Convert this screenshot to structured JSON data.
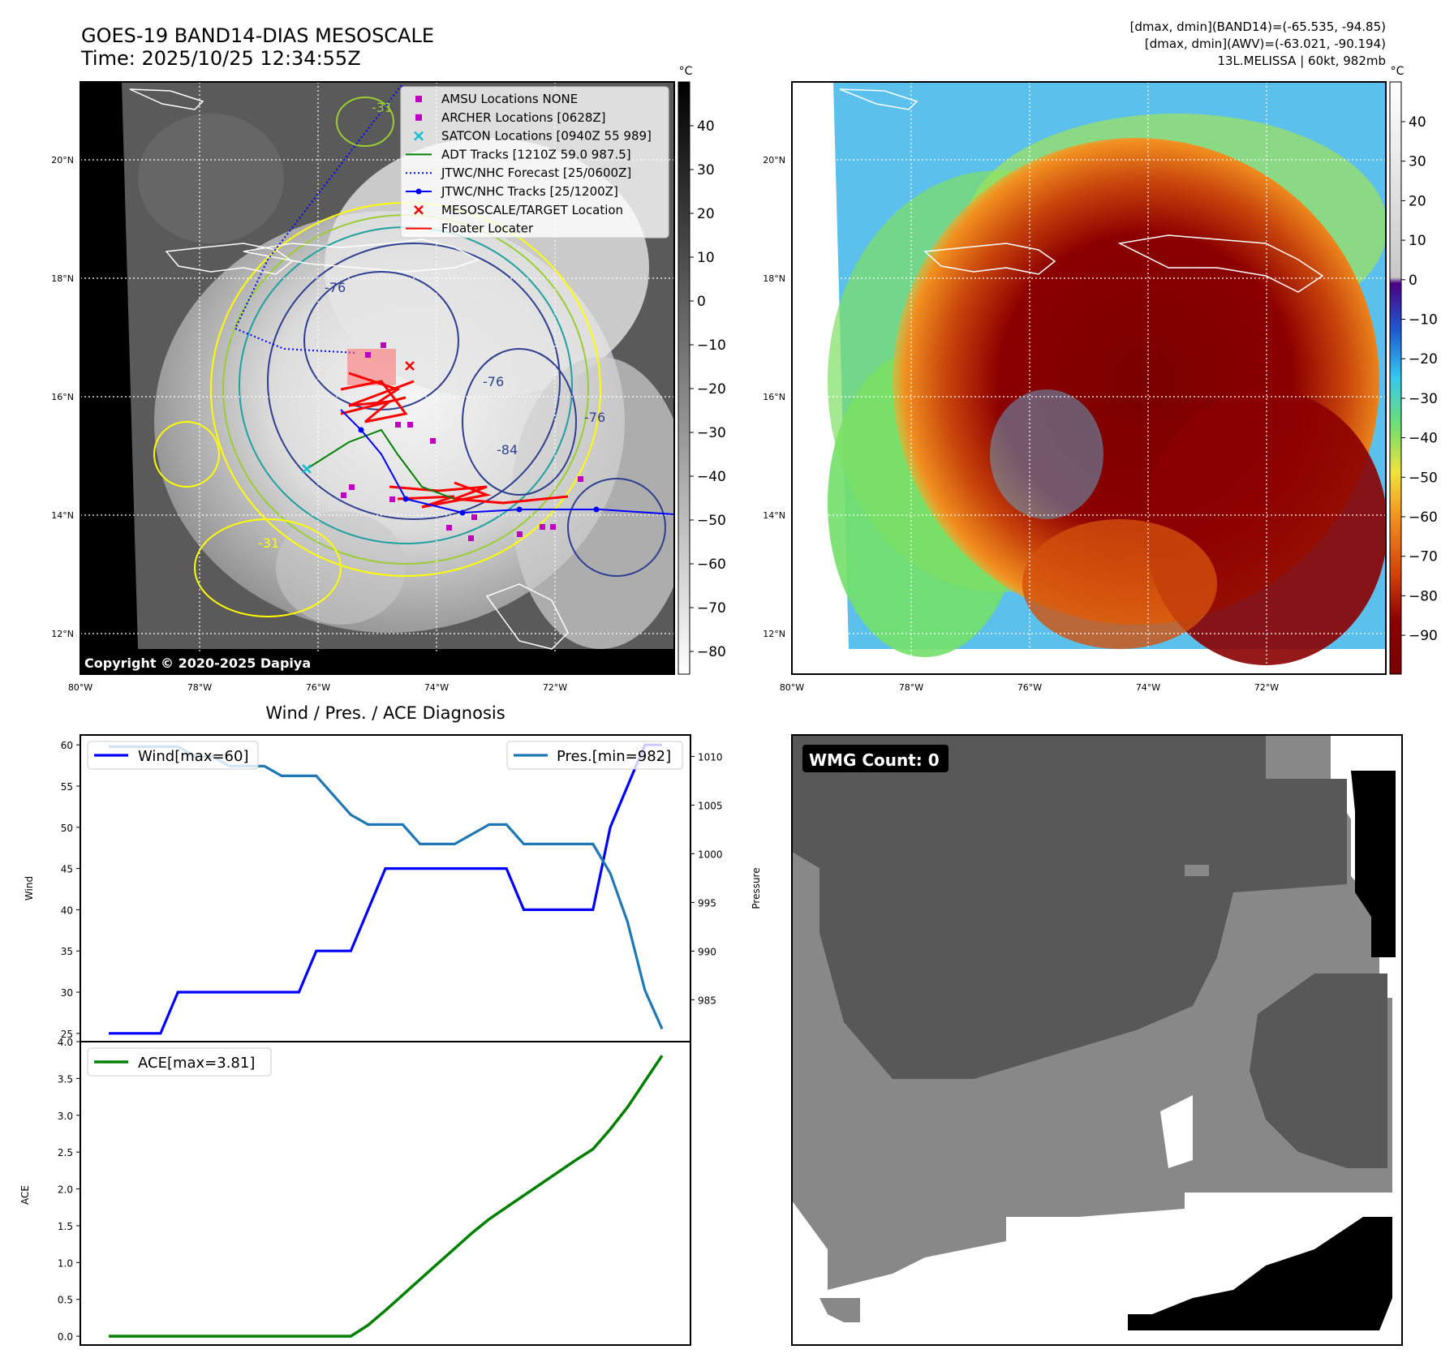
{
  "header": {
    "title_line1": "GOES-19 BAND14-DIAS MESOSCALE",
    "title_line2": "Time: 2025/10/25 12:34:55Z",
    "info_line1": "[dmax, dmin](BAND14)=(-65.535, -94.85)",
    "info_line2": "[dmax, dmin](AWV)=(-63.021, -90.194)",
    "info_line3": "13L.MELISSA | 60kt, 982mb"
  },
  "map_axes": {
    "lat_labels": [
      "20°N",
      "18°N",
      "16°N",
      "14°N",
      "12°N"
    ],
    "lon_labels": [
      "80°W",
      "78°W",
      "76°W",
      "74°W",
      "72°W"
    ]
  },
  "ir_panel": {
    "copyright": "Copyright © 2020-2025 Dapiya",
    "colorbar_unit": "°C",
    "colorbar_ticks": [
      "40",
      "30",
      "20",
      "10",
      "0",
      "−10",
      "−20",
      "−30",
      "−40",
      "−50",
      "−60",
      "−70",
      "−80"
    ],
    "contour_labels": [
      "-76",
      "-76",
      "-76",
      "-84",
      "-31",
      "-31"
    ],
    "legend": [
      {
        "label": "AMSU Locations NONE",
        "marker": "square",
        "color": "#bf00bf"
      },
      {
        "label": "ARCHER Locations [0628Z]",
        "marker": "square",
        "color": "#bf00bf"
      },
      {
        "label": "SATCON Locations [0940Z 55 989]",
        "marker": "x",
        "color": "#17becf"
      },
      {
        "label": "ADT Tracks [1210Z 59.0 987.5]",
        "marker": "line",
        "color": "#008000"
      },
      {
        "label": "JTWC/NHC Forecast [25/0600Z]",
        "marker": "dotted",
        "color": "#0000ff"
      },
      {
        "label": "JTWC/NHC Tracks [25/1200Z]",
        "marker": "line-dot",
        "color": "#0000ff"
      },
      {
        "label": "MESOSCALE/TARGET Location",
        "marker": "x",
        "color": "#ff0000"
      },
      {
        "label": "Floater Locater",
        "marker": "line",
        "color": "#ff0000"
      }
    ]
  },
  "awv_panel": {
    "colorbar_unit": "°C",
    "colorbar_ticks": [
      "40",
      "30",
      "20",
      "10",
      "0",
      "−10",
      "−20",
      "−30",
      "−40",
      "−50",
      "−60",
      "−70",
      "−80",
      "−90"
    ]
  },
  "wmg_panel": {
    "label": "WMG Count: 0"
  },
  "chart_data": [
    {
      "type": "line",
      "title": "Wind / Pres. / ACE Diagnosis",
      "x": [
        0,
        1,
        2,
        3,
        4,
        5,
        6,
        7,
        8,
        9,
        10,
        11,
        12,
        13,
        14,
        15,
        16,
        17,
        18,
        19,
        20,
        21,
        22,
        23,
        24,
        25,
        26,
        27,
        28,
        29,
        30,
        31,
        32
      ],
      "ylabel": "Wind",
      "ylabel_right": "Pressure",
      "ylim": [
        24,
        61.2
      ],
      "ylim_right": [
        980.7,
        1012.2
      ],
      "yticks": [
        25,
        30,
        35,
        40,
        45,
        50,
        55,
        60
      ],
      "yticks_right": [
        985,
        990,
        995,
        1000,
        1005,
        1010
      ],
      "series": [
        {
          "name": "Wind[max=60]",
          "axis": "left",
          "color": "#0000ff",
          "values": [
            25,
            25,
            25,
            25,
            30,
            30,
            30,
            30,
            30,
            30,
            30,
            30,
            35,
            35,
            35,
            40,
            45,
            45,
            45,
            45,
            45,
            45,
            45,
            45,
            40,
            40,
            40,
            40,
            40,
            50,
            55,
            60,
            60
          ]
        },
        {
          "name": "Pres.[min=982]",
          "axis": "right",
          "color": "#1f77b4",
          "values": [
            1011,
            1011,
            1011,
            1011,
            1011,
            1010,
            1010,
            1009,
            1009,
            1009,
            1008,
            1008,
            1008,
            1006,
            1004,
            1003,
            1003,
            1003,
            1001,
            1001,
            1001,
            1002,
            1003,
            1003,
            1001,
            1001,
            1001,
            1001,
            1001,
            998,
            993,
            986,
            982
          ]
        }
      ]
    },
    {
      "type": "line",
      "x": [
        0,
        1,
        2,
        3,
        4,
        5,
        6,
        7,
        8,
        9,
        10,
        11,
        12,
        13,
        14,
        15,
        16,
        17,
        18,
        19,
        20,
        21,
        22,
        23,
        24,
        25,
        26,
        27,
        28,
        29,
        30,
        31,
        32
      ],
      "ylabel": "ACE",
      "ylim": [
        -0.12,
        4.0
      ],
      "yticks": [
        0.0,
        0.5,
        1.0,
        1.5,
        2.0,
        2.5,
        3.0,
        3.5,
        4.0
      ],
      "series": [
        {
          "name": "ACE[max=3.81]",
          "color": "#008000",
          "values": [
            0,
            0,
            0,
            0,
            0,
            0,
            0,
            0,
            0,
            0,
            0,
            0,
            0,
            0,
            0,
            0.15,
            0.35,
            0.56,
            0.77,
            0.98,
            1.19,
            1.4,
            1.59,
            1.75,
            1.91,
            2.07,
            2.23,
            2.39,
            2.54,
            2.81,
            3.11,
            3.46,
            3.81
          ]
        }
      ]
    }
  ]
}
